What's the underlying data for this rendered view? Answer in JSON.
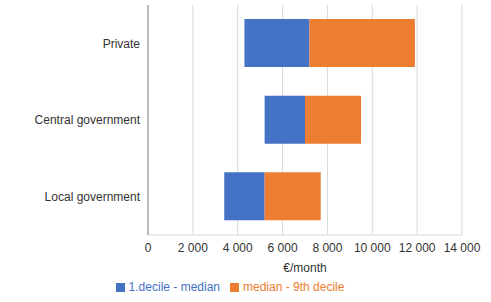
{
  "chart_data": {
    "type": "bar",
    "orientation": "horizontal",
    "categories": [
      "Private",
      "Central government",
      "Local government"
    ],
    "series": [
      {
        "name": "1.decile - median",
        "color": "#4472c4",
        "values": [
          [
            4300,
            7200
          ],
          [
            5200,
            7000
          ],
          [
            3400,
            5200
          ]
        ]
      },
      {
        "name": "median - 9th decile",
        "color": "#ed7d31",
        "values": [
          [
            7200,
            11900
          ],
          [
            7000,
            9500
          ],
          [
            5200,
            7700
          ]
        ]
      }
    ],
    "xlabel": "€/month",
    "xlim": [
      0,
      14000
    ],
    "xticks": [
      0,
      {
        "value": 2000,
        "label": "2 000"
      },
      {
        "value": 4000,
        "label": "4 000"
      },
      {
        "value": 6000,
        "label": "6 000"
      },
      {
        "value": 8000,
        "label": "8 000"
      },
      {
        "value": 10000,
        "label": "10 000"
      },
      {
        "value": 12000,
        "label": "12 000"
      },
      {
        "value": 14000,
        "label": "14 000"
      }
    ],
    "grid": true,
    "legend": "bottom"
  }
}
